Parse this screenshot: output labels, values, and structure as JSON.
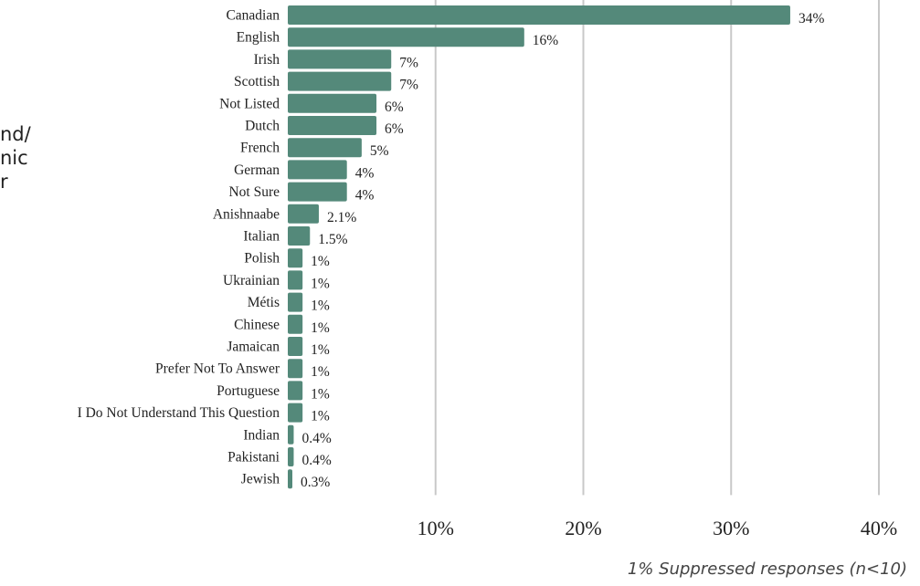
{
  "side_text": [
    "nd/",
    "nic",
    "r"
  ],
  "footnote": "1% Suppressed responses (n<10)",
  "colors": {
    "bar": "#54897a",
    "grid": "#c8c8c8"
  },
  "chart_data": {
    "type": "bar",
    "orientation": "horizontal",
    "categories": [
      "Canadian",
      "English",
      "Irish",
      "Scottish",
      "Not Listed",
      "Dutch",
      "French",
      "German",
      "Not Sure",
      "Anishnaabe",
      "Italian",
      "Polish",
      "Ukrainian",
      "Métis",
      "Chinese",
      "Jamaican",
      "Prefer Not To Answer",
      "Portuguese",
      "I Do Not Understand This Question",
      "Indian",
      "Pakistani",
      "Jewish"
    ],
    "values": [
      34,
      16,
      7,
      7,
      6,
      6,
      5,
      4,
      4,
      2.1,
      1.5,
      1,
      1,
      1,
      1,
      1,
      1,
      1,
      1,
      0.4,
      0.4,
      0.3
    ],
    "value_labels": [
      "34%",
      "16%",
      "7%",
      "7%",
      "6%",
      "6%",
      "5%",
      "4%",
      "4%",
      "2.1%",
      "1.5%",
      "1%",
      "1%",
      "1%",
      "1%",
      "1%",
      "1%",
      "1%",
      "1%",
      "0.4%",
      "0.4%",
      "0.3%"
    ],
    "xlim": [
      0,
      40
    ],
    "xticks": [
      10,
      20,
      30,
      40
    ],
    "xtick_labels": [
      "10%",
      "20%",
      "30%",
      "40%"
    ],
    "grid": true
  }
}
